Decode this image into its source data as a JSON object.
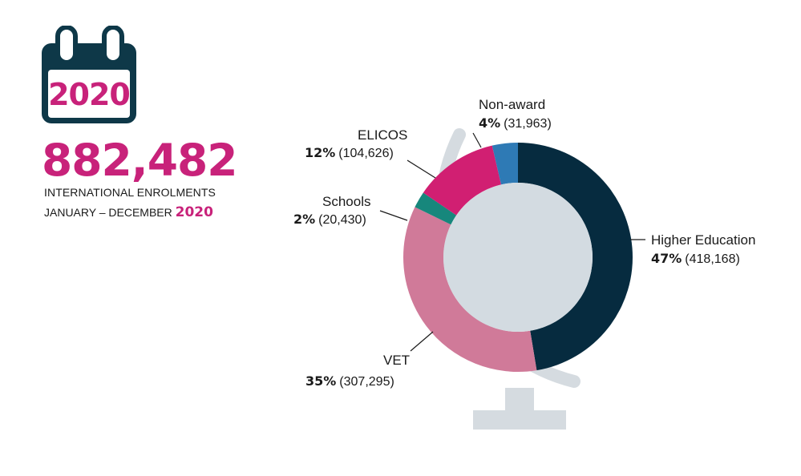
{
  "calendar": {
    "year": "2020"
  },
  "headline": {
    "total": "882,482",
    "line1": "INTERNATIONAL ENROLMENTS",
    "line2_prefix": "JANUARY – DECEMBER",
    "line2_year": "2020"
  },
  "colors": {
    "accent": "#c8227a",
    "calendar": "#0e3848",
    "globe": "#d5dbe0",
    "globe_center": "#d3dbe1"
  },
  "chart_data": {
    "type": "pie",
    "donut": true,
    "title": "",
    "segments": [
      {
        "name": "Higher Education",
        "percent": "47%",
        "percent_value": 47,
        "value": 418168,
        "count": "(418,168)",
        "color": "#062b3f"
      },
      {
        "name": "VET",
        "percent": "35%",
        "percent_value": 35,
        "value": 307295,
        "count": "(307,295)",
        "color": "#d07a99"
      },
      {
        "name": "Schools",
        "percent": "2%",
        "percent_value": 2,
        "value": 20430,
        "count": "(20,430)",
        "color": "#17877c"
      },
      {
        "name": "ELICOS",
        "percent": "12%",
        "percent_value": 12,
        "value": 104626,
        "count": "(104,626)",
        "color": "#d11f72"
      },
      {
        "name": "Non-award",
        "percent": "4%",
        "percent_value": 4,
        "value": 31963,
        "count": "(31,963)",
        "color": "#2e7ab5"
      }
    ]
  }
}
